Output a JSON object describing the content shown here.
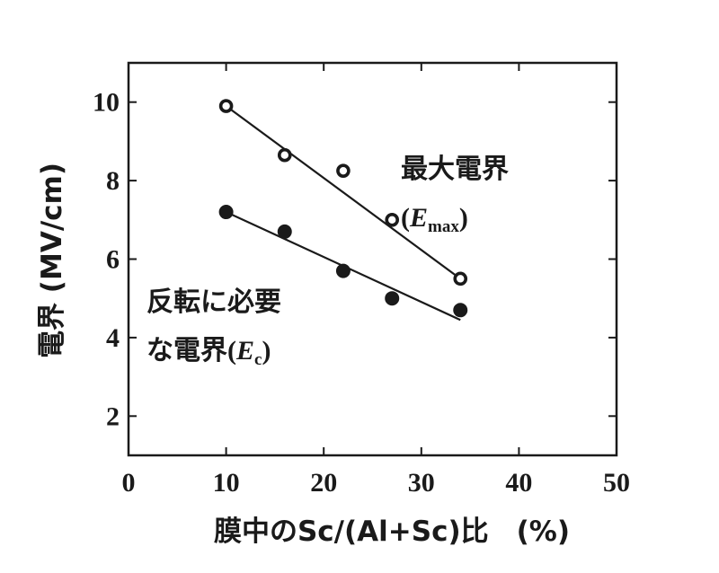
{
  "chart_data": {
    "type": "scatter",
    "xlabel": "膜中のSc/(Al+Sc)比　(%)",
    "ylabel": "電界 (MV/cm)",
    "xlim": [
      0,
      50
    ],
    "ylim": [
      1,
      11
    ],
    "xticks": [
      "0",
      "10",
      "20",
      "30",
      "40",
      "50"
    ],
    "yticks": [
      "2",
      "4",
      "6",
      "8",
      "10"
    ],
    "grid": false,
    "series": [
      {
        "name": "最大電界(Emax)",
        "marker": "open-circle",
        "color": "#1a1a1a",
        "x": [
          10,
          16,
          22,
          27,
          34
        ],
        "y": [
          9.9,
          8.65,
          8.25,
          7.0,
          5.5
        ],
        "fit": [
          [
            10,
            9.9
          ],
          [
            34,
            5.5
          ]
        ]
      },
      {
        "name": "反転に必要な電界(Ec)",
        "marker": "filled-circle",
        "color": "#1a1a1a",
        "x": [
          10,
          16,
          22,
          27,
          34
        ],
        "y": [
          7.2,
          6.7,
          5.7,
          5.0,
          4.7
        ],
        "fit": [
          [
            10,
            7.2
          ],
          [
            34,
            4.45
          ]
        ]
      }
    ],
    "annotations": {
      "emax_label": "最大電界",
      "emax_paren_open": "(",
      "emax_E": "E",
      "emax_sub": "max",
      "emax_paren_close": ")",
      "ec_line1": "反転に必要",
      "ec_line2": "な電界",
      "ec_paren_open": "(",
      "ec_E": "E",
      "ec_sub": "c",
      "ec_paren_close": ")"
    }
  }
}
